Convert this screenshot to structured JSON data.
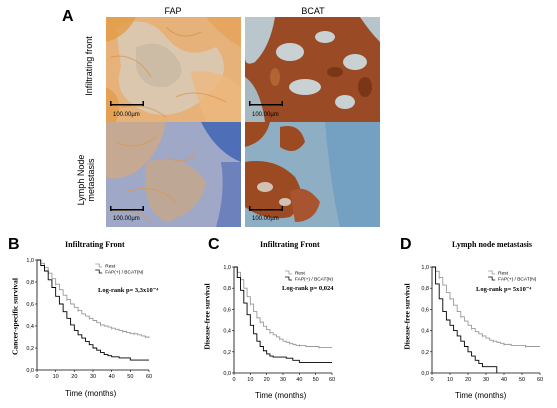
{
  "panel_a": {
    "letter": "A",
    "col_labels": [
      "FAP",
      "BCAT"
    ],
    "row_labels": [
      "Infiltrating front",
      "Lymph Node\nmetastasis"
    ],
    "scale_labels": [
      "100.00µm",
      "100.00µm",
      "100.00µm",
      "100.00µm"
    ]
  },
  "chart_data": [
    {
      "panel": "B",
      "type": "line",
      "title": "Infiltrating Front",
      "xlabel": "Time (months)",
      "ylabel": "Cancer-specific survival",
      "xlim": [
        0,
        60
      ],
      "ylim": [
        0,
        1
      ],
      "xticks": [
        "0",
        "10",
        "20",
        "30",
        "40",
        "50",
        "60"
      ],
      "yticks": [
        "0,0",
        "0,2",
        "0,4",
        "0,6",
        "0,8",
        "1,0"
      ],
      "legend": "top-right",
      "annotation": "Log-rank p= 3,3x10⁻⁴",
      "series": [
        {
          "name": "Rest",
          "color": "#999999",
          "x": [
            0,
            2,
            4,
            6,
            8,
            10,
            12,
            14,
            16,
            18,
            20,
            22,
            24,
            26,
            28,
            30,
            32,
            34,
            36,
            38,
            40,
            42,
            44,
            46,
            48,
            50,
            52,
            54,
            56,
            58,
            60
          ],
          "y": [
            1.0,
            0.97,
            0.93,
            0.88,
            0.83,
            0.78,
            0.73,
            0.68,
            0.64,
            0.6,
            0.57,
            0.54,
            0.51,
            0.49,
            0.47,
            0.45,
            0.43,
            0.41,
            0.4,
            0.39,
            0.38,
            0.37,
            0.36,
            0.35,
            0.34,
            0.33,
            0.33,
            0.32,
            0.31,
            0.3,
            0.29
          ]
        },
        {
          "name": "FAP(+) / BCAT(N)",
          "color": "#000000",
          "x": [
            0,
            2,
            4,
            6,
            8,
            10,
            12,
            14,
            16,
            18,
            20,
            22,
            24,
            26,
            28,
            30,
            32,
            34,
            36,
            38,
            40,
            42,
            44,
            48,
            50,
            52,
            56,
            60
          ],
          "y": [
            1.0,
            0.95,
            0.9,
            0.82,
            0.75,
            0.67,
            0.6,
            0.53,
            0.47,
            0.41,
            0.36,
            0.32,
            0.29,
            0.26,
            0.23,
            0.2,
            0.18,
            0.16,
            0.14,
            0.13,
            0.12,
            0.12,
            0.11,
            0.11,
            0.09,
            0.09,
            0.09,
            0.09
          ]
        }
      ]
    },
    {
      "panel": "C",
      "type": "line",
      "title": "Infiltrating Front",
      "xlabel": "Time (months)",
      "ylabel": "Disease-free survival",
      "xlim": [
        0,
        60
      ],
      "ylim": [
        0,
        1
      ],
      "xticks": [
        "0",
        "10",
        "20",
        "30",
        "40",
        "50",
        "60"
      ],
      "yticks": [
        "0,0",
        "0,2",
        "0,4",
        "0,6",
        "0,8",
        "1,0"
      ],
      "legend": "top-right",
      "annotation": "Log-rank p= 0,024",
      "series": [
        {
          "name": "Rest",
          "color": "#999999",
          "x": [
            0,
            2,
            4,
            6,
            8,
            10,
            12,
            14,
            16,
            18,
            20,
            22,
            24,
            26,
            28,
            30,
            32,
            34,
            36,
            38,
            40,
            44,
            48,
            52,
            56,
            60
          ],
          "y": [
            1.0,
            0.95,
            0.88,
            0.8,
            0.72,
            0.65,
            0.58,
            0.52,
            0.48,
            0.44,
            0.41,
            0.38,
            0.36,
            0.34,
            0.32,
            0.3,
            0.29,
            0.28,
            0.27,
            0.26,
            0.26,
            0.25,
            0.25,
            0.24,
            0.24,
            0.24
          ]
        },
        {
          "name": "FAP(+) / BCAT(N)",
          "color": "#000000",
          "x": [
            0,
            2,
            4,
            6,
            8,
            10,
            12,
            14,
            16,
            18,
            20,
            22,
            24,
            28,
            32,
            36,
            40,
            50,
            60
          ],
          "y": [
            1.0,
            0.9,
            0.78,
            0.66,
            0.55,
            0.45,
            0.37,
            0.3,
            0.25,
            0.21,
            0.18,
            0.16,
            0.15,
            0.15,
            0.14,
            0.12,
            0.1,
            0.1,
            0.1
          ]
        }
      ]
    },
    {
      "panel": "D",
      "type": "line",
      "title": "Lymph node metastasis",
      "xlabel": "Time (months)",
      "ylabel": "Disease-free survival",
      "xlim": [
        0,
        60
      ],
      "ylim": [
        0,
        1
      ],
      "xticks": [
        "0",
        "10",
        "20",
        "30",
        "40",
        "50",
        "60"
      ],
      "yticks": [
        "0,0",
        "0,2",
        "0,4",
        "0,6",
        "0,8",
        "1,0"
      ],
      "legend": "top-right",
      "annotation": "Log-rank p= 5x10⁻⁴",
      "series": [
        {
          "name": "Rest",
          "color": "#999999",
          "x": [
            0,
            2,
            4,
            6,
            8,
            10,
            12,
            14,
            16,
            18,
            20,
            22,
            24,
            26,
            28,
            30,
            32,
            34,
            36,
            38,
            40,
            44,
            48,
            52,
            56,
            60
          ],
          "y": [
            1.0,
            0.96,
            0.9,
            0.83,
            0.76,
            0.7,
            0.64,
            0.58,
            0.53,
            0.49,
            0.45,
            0.42,
            0.39,
            0.37,
            0.35,
            0.33,
            0.31,
            0.3,
            0.29,
            0.28,
            0.27,
            0.26,
            0.26,
            0.25,
            0.25,
            0.25
          ]
        },
        {
          "name": "FAP(+) / BCAT(N)",
          "color": "#000000",
          "x": [
            0,
            2,
            4,
            6,
            8,
            10,
            12,
            14,
            16,
            18,
            20,
            22,
            24,
            26,
            28,
            30,
            32,
            36
          ],
          "y": [
            1.0,
            0.84,
            0.7,
            0.58,
            0.5,
            0.45,
            0.4,
            0.35,
            0.3,
            0.25,
            0.2,
            0.16,
            0.12,
            0.09,
            0.06,
            0.06,
            0.06,
            0.0
          ]
        }
      ]
    }
  ]
}
